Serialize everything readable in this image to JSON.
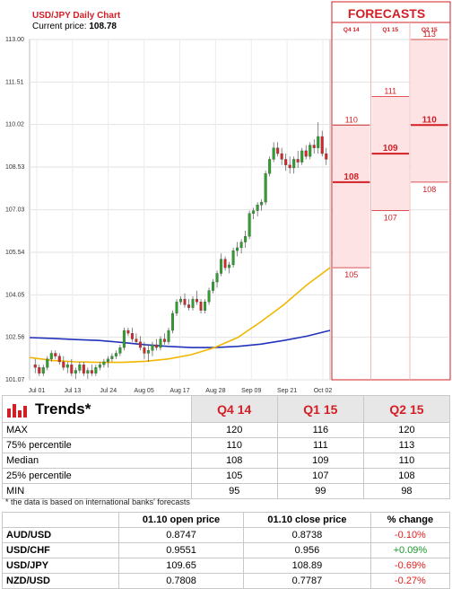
{
  "chart_data": {
    "type": "candlestick",
    "title": "USD/JPY Daily Chart",
    "current_price_label": "Current price:",
    "current_price": "108.78",
    "y_ticks": [
      "113.00",
      "111.51",
      "110.02",
      "108.53",
      "107.03",
      "105.54",
      "104.05",
      "102.56",
      "101.07"
    ],
    "ylim": [
      101.07,
      113.0
    ],
    "x_ticks": [
      "Jul 01",
      "Jul 13",
      "Jul 24",
      "Aug 05",
      "Aug 17",
      "Aug 28",
      "Sep 09",
      "Sep 21",
      "Oct 02"
    ],
    "candles": [
      {
        "o": 101.6,
        "h": 101.8,
        "l": 101.3,
        "c": 101.5
      },
      {
        "o": 101.5,
        "h": 101.6,
        "l": 101.2,
        "c": 101.3
      },
      {
        "o": 101.3,
        "h": 101.6,
        "l": 101.2,
        "c": 101.5
      },
      {
        "o": 101.5,
        "h": 101.9,
        "l": 101.4,
        "c": 101.8
      },
      {
        "o": 101.8,
        "h": 102.1,
        "l": 101.7,
        "c": 102.0
      },
      {
        "o": 102.0,
        "h": 102.1,
        "l": 101.8,
        "c": 101.9
      },
      {
        "o": 101.9,
        "h": 102.0,
        "l": 101.6,
        "c": 101.7
      },
      {
        "o": 101.7,
        "h": 101.9,
        "l": 101.4,
        "c": 101.5
      },
      {
        "o": 101.5,
        "h": 101.7,
        "l": 101.3,
        "c": 101.6
      },
      {
        "o": 101.6,
        "h": 101.8,
        "l": 101.2,
        "c": 101.3
      },
      {
        "o": 101.3,
        "h": 101.5,
        "l": 101.1,
        "c": 101.4
      },
      {
        "o": 101.4,
        "h": 101.7,
        "l": 101.3,
        "c": 101.6
      },
      {
        "o": 101.6,
        "h": 101.7,
        "l": 101.2,
        "c": 101.3
      },
      {
        "o": 101.3,
        "h": 101.5,
        "l": 101.1,
        "c": 101.4
      },
      {
        "o": 101.4,
        "h": 101.6,
        "l": 101.2,
        "c": 101.3
      },
      {
        "o": 101.3,
        "h": 101.6,
        "l": 101.2,
        "c": 101.5
      },
      {
        "o": 101.5,
        "h": 101.7,
        "l": 101.4,
        "c": 101.6
      },
      {
        "o": 101.6,
        "h": 101.8,
        "l": 101.5,
        "c": 101.7
      },
      {
        "o": 101.7,
        "h": 101.9,
        "l": 101.5,
        "c": 101.8
      },
      {
        "o": 101.8,
        "h": 102.0,
        "l": 101.7,
        "c": 101.9
      },
      {
        "o": 101.9,
        "h": 102.1,
        "l": 101.8,
        "c": 102.0
      },
      {
        "o": 102.0,
        "h": 102.3,
        "l": 101.9,
        "c": 102.2
      },
      {
        "o": 102.2,
        "h": 102.9,
        "l": 102.1,
        "c": 102.8
      },
      {
        "o": 102.8,
        "h": 102.9,
        "l": 102.6,
        "c": 102.7
      },
      {
        "o": 102.7,
        "h": 102.9,
        "l": 102.4,
        "c": 102.5
      },
      {
        "o": 102.5,
        "h": 102.7,
        "l": 102.3,
        "c": 102.4
      },
      {
        "o": 102.4,
        "h": 102.6,
        "l": 102.1,
        "c": 102.2
      },
      {
        "o": 102.2,
        "h": 102.4,
        "l": 101.8,
        "c": 102.0
      },
      {
        "o": 102.0,
        "h": 102.3,
        "l": 101.7,
        "c": 102.1
      },
      {
        "o": 102.1,
        "h": 102.4,
        "l": 101.9,
        "c": 102.3
      },
      {
        "o": 102.3,
        "h": 102.5,
        "l": 102.1,
        "c": 102.2
      },
      {
        "o": 102.2,
        "h": 102.6,
        "l": 102.1,
        "c": 102.5
      },
      {
        "o": 102.5,
        "h": 102.7,
        "l": 102.3,
        "c": 102.4
      },
      {
        "o": 102.4,
        "h": 102.9,
        "l": 102.3,
        "c": 102.8
      },
      {
        "o": 102.8,
        "h": 103.5,
        "l": 102.7,
        "c": 103.4
      },
      {
        "o": 103.4,
        "h": 103.9,
        "l": 103.3,
        "c": 103.8
      },
      {
        "o": 103.8,
        "h": 104.0,
        "l": 103.7,
        "c": 103.9
      },
      {
        "o": 103.9,
        "h": 104.1,
        "l": 103.6,
        "c": 103.7
      },
      {
        "o": 103.7,
        "h": 103.9,
        "l": 103.5,
        "c": 103.6
      },
      {
        "o": 103.6,
        "h": 104.0,
        "l": 103.5,
        "c": 103.9
      },
      {
        "o": 103.9,
        "h": 104.2,
        "l": 103.7,
        "c": 103.8
      },
      {
        "o": 103.8,
        "h": 103.9,
        "l": 103.4,
        "c": 103.5
      },
      {
        "o": 103.5,
        "h": 103.9,
        "l": 103.4,
        "c": 103.8
      },
      {
        "o": 103.8,
        "h": 104.3,
        "l": 103.7,
        "c": 104.2
      },
      {
        "o": 104.2,
        "h": 104.6,
        "l": 104.1,
        "c": 104.5
      },
      {
        "o": 104.5,
        "h": 104.9,
        "l": 104.3,
        "c": 104.8
      },
      {
        "o": 104.8,
        "h": 105.5,
        "l": 104.7,
        "c": 105.3
      },
      {
        "o": 105.3,
        "h": 105.4,
        "l": 104.9,
        "c": 105.0
      },
      {
        "o": 105.0,
        "h": 105.2,
        "l": 104.8,
        "c": 105.1
      },
      {
        "o": 105.1,
        "h": 105.7,
        "l": 105.0,
        "c": 105.6
      },
      {
        "o": 105.6,
        "h": 105.9,
        "l": 105.4,
        "c": 105.7
      },
      {
        "o": 105.7,
        "h": 106.0,
        "l": 105.5,
        "c": 105.9
      },
      {
        "o": 105.9,
        "h": 106.3,
        "l": 105.7,
        "c": 106.1
      },
      {
        "o": 106.1,
        "h": 107.0,
        "l": 106.0,
        "c": 106.9
      },
      {
        "o": 106.9,
        "h": 107.1,
        "l": 106.7,
        "c": 107.0
      },
      {
        "o": 107.0,
        "h": 107.3,
        "l": 106.8,
        "c": 107.2
      },
      {
        "o": 107.2,
        "h": 107.4,
        "l": 107.0,
        "c": 107.3
      },
      {
        "o": 107.3,
        "h": 108.4,
        "l": 107.2,
        "c": 108.3
      },
      {
        "o": 108.3,
        "h": 108.9,
        "l": 108.2,
        "c": 108.8
      },
      {
        "o": 108.8,
        "h": 109.4,
        "l": 108.7,
        "c": 109.2
      },
      {
        "o": 109.2,
        "h": 109.4,
        "l": 108.9,
        "c": 109.0
      },
      {
        "o": 109.0,
        "h": 109.2,
        "l": 108.6,
        "c": 108.8
      },
      {
        "o": 108.8,
        "h": 109.0,
        "l": 108.4,
        "c": 108.6
      },
      {
        "o": 108.6,
        "h": 108.9,
        "l": 108.3,
        "c": 108.5
      },
      {
        "o": 108.5,
        "h": 108.9,
        "l": 108.3,
        "c": 108.8
      },
      {
        "o": 108.8,
        "h": 109.1,
        "l": 108.5,
        "c": 108.7
      },
      {
        "o": 108.7,
        "h": 109.2,
        "l": 108.6,
        "c": 109.1
      },
      {
        "o": 109.1,
        "h": 109.3,
        "l": 108.8,
        "c": 108.9
      },
      {
        "o": 108.9,
        "h": 109.4,
        "l": 108.8,
        "c": 109.3
      },
      {
        "o": 109.3,
        "h": 109.5,
        "l": 109.0,
        "c": 109.2
      },
      {
        "o": 109.2,
        "h": 110.1,
        "l": 109.0,
        "c": 109.6
      },
      {
        "o": 109.6,
        "h": 109.8,
        "l": 108.9,
        "c": 109.0
      },
      {
        "o": 109.0,
        "h": 109.2,
        "l": 108.6,
        "c": 108.8
      }
    ],
    "ma_yellow": [
      101.85,
      101.75,
      101.7,
      101.68,
      101.68,
      101.72,
      101.8,
      101.95,
      102.2,
      102.55,
      103.1,
      103.7,
      104.4,
      105.0
    ],
    "ma_blue": [
      102.55,
      102.52,
      102.48,
      102.45,
      102.38,
      102.3,
      102.24,
      102.2,
      102.2,
      102.24,
      102.32,
      102.45,
      102.6,
      102.8
    ],
    "forecasts": {
      "title": "FORECASTS",
      "columns": [
        {
          "label": "Q4 14",
          "high": "110",
          "median": "108",
          "low": "105",
          "high_v": 110,
          "median_v": 108,
          "low_v": 105
        },
        {
          "label": "Q1 15",
          "high": "111",
          "median": "109",
          "low": "107",
          "high_v": 111,
          "median_v": 109,
          "low_v": 107
        },
        {
          "label": "Q2 15",
          "high": "113",
          "median": "110",
          "low": "108",
          "high_v": 113,
          "median_v": 110,
          "low_v": 108
        }
      ]
    }
  },
  "trends": {
    "title": "Trends*",
    "columns": [
      "Q4 14",
      "Q1 15",
      "Q2 15"
    ],
    "rows": [
      {
        "label": "MAX",
        "values": [
          "120",
          "116",
          "120"
        ]
      },
      {
        "label": "75% percentile",
        "values": [
          "110",
          "111",
          "113"
        ]
      },
      {
        "label": "Median",
        "values": [
          "108",
          "109",
          "110"
        ]
      },
      {
        "label": "25% percentile",
        "values": [
          "105",
          "107",
          "108"
        ]
      },
      {
        "label": "MIN",
        "values": [
          "95",
          "99",
          "98"
        ]
      }
    ],
    "footnote": "* the data is based on international banks' forecasts"
  },
  "prices": {
    "headers": [
      "",
      "01.10 open price",
      "01.10 close price",
      "% change"
    ],
    "rows": [
      {
        "pair": "AUD/USD",
        "open": "0.8747",
        "close": "0.8738",
        "change": "-0.10%",
        "dir": "neg"
      },
      {
        "pair": "USD/CHF",
        "open": "0.9551",
        "close": "0.956",
        "change": "+0.09%",
        "dir": "pos"
      },
      {
        "pair": "USD/JPY",
        "open": "109.65",
        "close": "108.89",
        "change": "-0.69%",
        "dir": "neg"
      },
      {
        "pair": "NZD/USD",
        "open": "0.7808",
        "close": "0.7787",
        "change": "-0.27%",
        "dir": "neg"
      }
    ]
  },
  "colors": {
    "bull": "#2ca02c",
    "bear": "#d62728",
    "ma_yellow": "#f2b600",
    "ma_blue": "#2233bb",
    "accent": "#d21f26",
    "forecast_bg": "#fde3e3"
  }
}
